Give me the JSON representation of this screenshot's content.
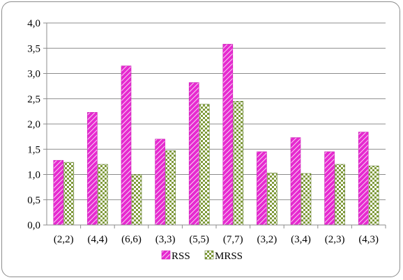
{
  "chart_data": {
    "type": "bar",
    "categories": [
      "(2,2)",
      "(4,4)",
      "(6,6)",
      "(3,3)",
      "(5,5)",
      "(7,7)",
      "(3,2)",
      "(3,4)",
      "(2,3)",
      "(4,3)"
    ],
    "series": [
      {
        "name": "RSS",
        "values": [
          1.28,
          2.23,
          3.15,
          1.7,
          2.82,
          3.58,
          1.45,
          1.73,
          1.45,
          1.84
        ],
        "color": "#e62ad0",
        "pattern": "diagonal-stripes"
      },
      {
        "name": "MRSS",
        "values": [
          1.24,
          1.2,
          1.0,
          1.47,
          2.39,
          2.45,
          1.03,
          1.02,
          1.2,
          1.17
        ],
        "color": "#7f9a3a",
        "pattern": "checkered"
      }
    ],
    "ylim": [
      0,
      4.0
    ],
    "yticks": [
      "0,0",
      "0,5",
      "1,0",
      "1,5",
      "2,0",
      "2,5",
      "3,0",
      "3,5",
      "4,0"
    ],
    "grid": true,
    "legend_position": "bottom"
  }
}
